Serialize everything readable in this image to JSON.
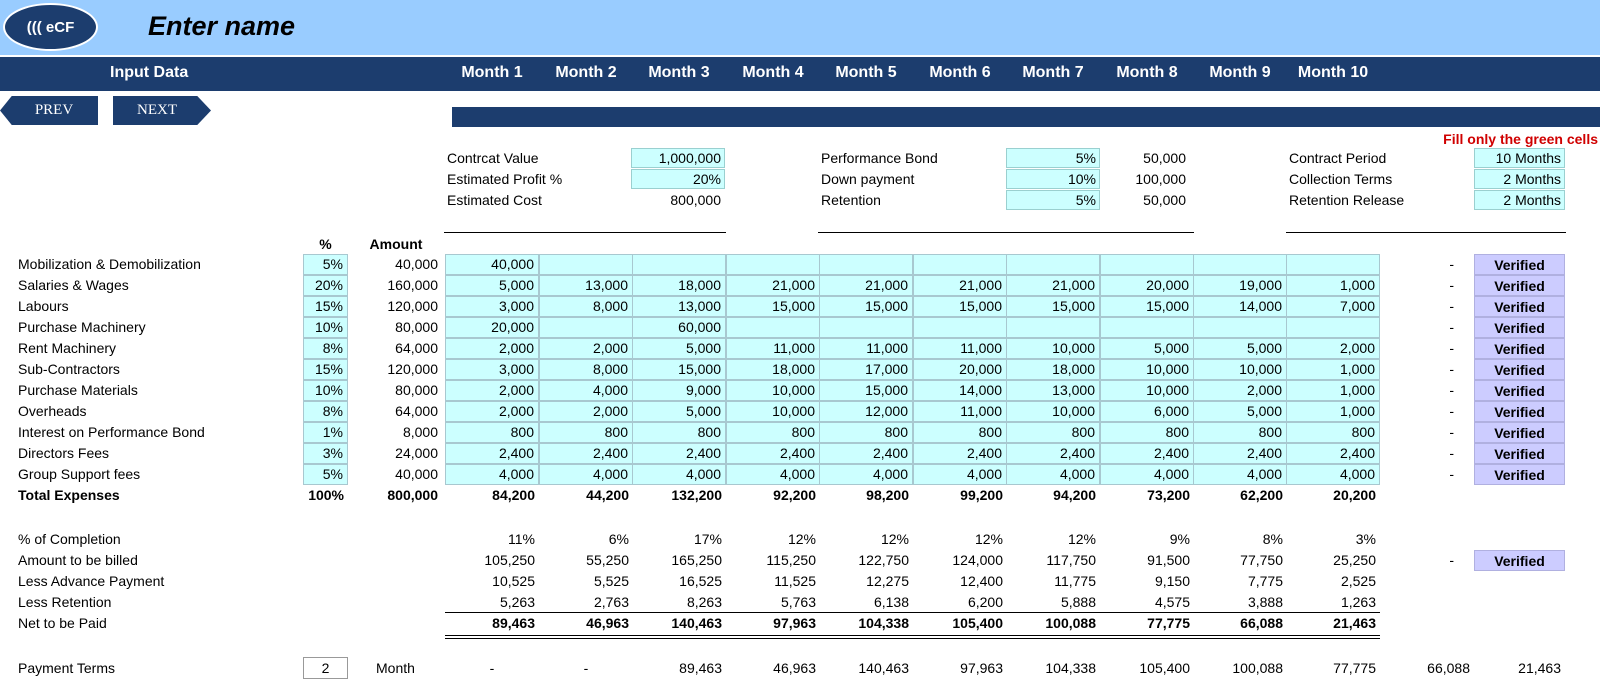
{
  "header": {
    "logo_text": "((( eCF",
    "title": "Enter name"
  },
  "nav": {
    "input_data_label": "Input Data",
    "prev_label": "PREV",
    "next_label": "NEXT"
  },
  "months": [
    "Month 1",
    "Month 2",
    "Month 3",
    "Month 4",
    "Month 5",
    "Month 6",
    "Month 7",
    "Month 8",
    "Month 9",
    "Month 10"
  ],
  "fill_note": "Fill only the green cells",
  "params": {
    "contract_value": {
      "label": "Contrcat Value",
      "value": "1,000,000"
    },
    "estimated_profit": {
      "label": "Estimated Profit %",
      "value": "20%"
    },
    "estimated_cost": {
      "label": "Estimated Cost",
      "value": "800,000"
    },
    "performance_bond": {
      "label": "Performance Bond",
      "value": "5%",
      "amount": "50,000"
    },
    "down_payment": {
      "label": "Down payment",
      "value": "10%",
      "amount": "100,000"
    },
    "retention": {
      "label": "Retention",
      "value": "5%",
      "amount": "50,000"
    },
    "contract_period": {
      "label": "Contract Period",
      "value": "10 Months"
    },
    "collection_terms": {
      "label": "Collection Terms",
      "value": "2 Months"
    },
    "retention_release": {
      "label": "Retention Release",
      "value": "2 Months"
    }
  },
  "table_headers": {
    "pct": "%",
    "amount": "Amount"
  },
  "verified_label": "Verified",
  "dash": "-",
  "expenses": [
    {
      "label": "Mobilization & Demobilization",
      "pct": "5%",
      "amount": "40,000",
      "months": [
        "40,000",
        "",
        "",
        "",
        "",
        "",
        "",
        "",
        "",
        ""
      ]
    },
    {
      "label": "Salaries & Wages",
      "pct": "20%",
      "amount": "160,000",
      "months": [
        "5,000",
        "13,000",
        "18,000",
        "21,000",
        "21,000",
        "21,000",
        "21,000",
        "20,000",
        "19,000",
        "1,000"
      ]
    },
    {
      "label": "Labours",
      "pct": "15%",
      "amount": "120,000",
      "months": [
        "3,000",
        "8,000",
        "13,000",
        "15,000",
        "15,000",
        "15,000",
        "15,000",
        "15,000",
        "14,000",
        "7,000"
      ]
    },
    {
      "label": "Purchase Machinery",
      "pct": "10%",
      "amount": "80,000",
      "months": [
        "20,000",
        "",
        "60,000",
        "",
        "",
        "",
        "",
        "",
        "",
        ""
      ]
    },
    {
      "label": "Rent Machinery",
      "pct": "8%",
      "amount": "64,000",
      "months": [
        "2,000",
        "2,000",
        "5,000",
        "11,000",
        "11,000",
        "11,000",
        "10,000",
        "5,000",
        "5,000",
        "2,000"
      ]
    },
    {
      "label": "Sub-Contractors",
      "pct": "15%",
      "amount": "120,000",
      "months": [
        "3,000",
        "8,000",
        "15,000",
        "18,000",
        "17,000",
        "20,000",
        "18,000",
        "10,000",
        "10,000",
        "1,000"
      ]
    },
    {
      "label": "Purchase Materials",
      "pct": "10%",
      "amount": "80,000",
      "months": [
        "2,000",
        "4,000",
        "9,000",
        "10,000",
        "15,000",
        "14,000",
        "13,000",
        "10,000",
        "2,000",
        "1,000"
      ]
    },
    {
      "label": "Overheads",
      "pct": "8%",
      "amount": "64,000",
      "months": [
        "2,000",
        "2,000",
        "5,000",
        "10,000",
        "12,000",
        "11,000",
        "10,000",
        "6,000",
        "5,000",
        "1,000"
      ]
    },
    {
      "label": "Interest on Performance Bond",
      "pct": "1%",
      "amount": "8,000",
      "months": [
        "800",
        "800",
        "800",
        "800",
        "800",
        "800",
        "800",
        "800",
        "800",
        "800"
      ]
    },
    {
      "label": "Directors Fees",
      "pct": "3%",
      "amount": "24,000",
      "months": [
        "2,400",
        "2,400",
        "2,400",
        "2,400",
        "2,400",
        "2,400",
        "2,400",
        "2,400",
        "2,400",
        "2,400"
      ]
    },
    {
      "label": "Group Support fees",
      "pct": "5%",
      "amount": "40,000",
      "months": [
        "4,000",
        "4,000",
        "4,000",
        "4,000",
        "4,000",
        "4,000",
        "4,000",
        "4,000",
        "4,000",
        "4,000"
      ]
    }
  ],
  "total_expenses": {
    "label": "Total Expenses",
    "pct": "100%",
    "amount": "800,000",
    "months": [
      "84,200",
      "44,200",
      "132,200",
      "92,200",
      "98,200",
      "99,200",
      "94,200",
      "73,200",
      "62,200",
      "20,200"
    ]
  },
  "billing": [
    {
      "label": "% of Completion",
      "months": [
        "11%",
        "6%",
        "17%",
        "12%",
        "12%",
        "12%",
        "12%",
        "9%",
        "8%",
        "3%"
      ]
    },
    {
      "label": "Amount to be billed",
      "months": [
        "105,250",
        "55,250",
        "165,250",
        "115,250",
        "122,750",
        "124,000",
        "117,750",
        "91,500",
        "77,750",
        "25,250"
      ]
    },
    {
      "label": "Less Advance Payment",
      "months": [
        "10,525",
        "5,525",
        "16,525",
        "11,525",
        "12,275",
        "12,400",
        "11,775",
        "9,150",
        "7,775",
        "2,525"
      ]
    },
    {
      "label": "Less Retention",
      "months": [
        "5,263",
        "2,763",
        "8,263",
        "5,763",
        "6,138",
        "6,200",
        "5,888",
        "4,575",
        "3,888",
        "1,263"
      ]
    }
  ],
  "net_paid": {
    "label": "Net to be Paid",
    "months": [
      "89,463",
      "46,963",
      "140,463",
      "97,963",
      "104,338",
      "105,400",
      "100,088",
      "77,775",
      "66,088",
      "21,463"
    ]
  },
  "payment_terms": {
    "label": "Payment Terms",
    "value": "2",
    "unit": "Month",
    "months": [
      "-",
      "-",
      "89,463",
      "46,963",
      "140,463",
      "97,963",
      "104,338",
      "105,400",
      "100,088",
      "77,775",
      "66,088",
      "21,463"
    ]
  }
}
